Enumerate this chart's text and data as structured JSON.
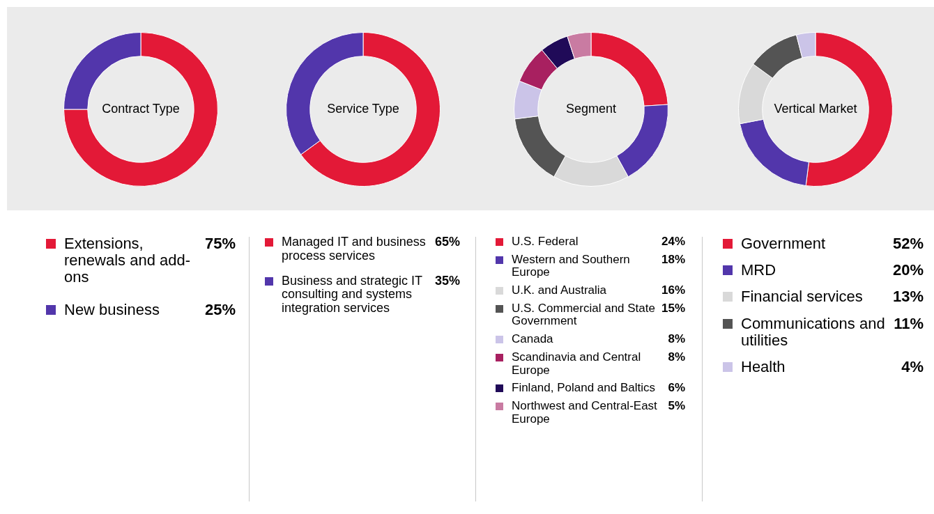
{
  "chart_data": [
    {
      "type": "donut",
      "title": "Contract Type",
      "categories": [
        "Extensions, renewals and add-ons",
        "New business"
      ],
      "values": [
        75,
        25
      ],
      "colors": [
        "#e31937",
        "#5236ab"
      ],
      "value_labels": [
        "75%",
        "25%"
      ],
      "legend": "bottom"
    },
    {
      "type": "donut",
      "title": "Service Type",
      "categories": [
        "Managed IT and business process services",
        "Business and strategic IT consulting and systems integration services"
      ],
      "values": [
        65,
        35
      ],
      "colors": [
        "#e31937",
        "#5236ab"
      ],
      "value_labels": [
        "65%",
        "35%"
      ],
      "legend": "bottom"
    },
    {
      "type": "donut",
      "title": "Segment",
      "categories": [
        "U.S. Federal",
        "Western and Southern Europe",
        "U.K. and Australia",
        "U.S. Commercial and State Government",
        "Canada",
        "Scandinavia and Central Europe",
        "Finland, Poland and Baltics",
        "Northwest and Central-East Europe"
      ],
      "values": [
        24,
        18,
        16,
        15,
        8,
        8,
        6,
        5
      ],
      "colors": [
        "#e31937",
        "#5236ab",
        "#d9d9d9",
        "#545454",
        "#cbc4e8",
        "#a82060",
        "#200a58",
        "#c97ba2"
      ],
      "value_labels": [
        "24%",
        "18%",
        "16%",
        "15%",
        "8%",
        "8%",
        "6%",
        "5%"
      ],
      "legend": "bottom"
    },
    {
      "type": "donut",
      "title": "Vertical Market",
      "categories": [
        "Government",
        "MRD",
        "Financial services",
        "Communications and utilities",
        "Health"
      ],
      "values": [
        52,
        20,
        13,
        11,
        4
      ],
      "colors": [
        "#e31937",
        "#5236ab",
        "#d9d9d9",
        "#545454",
        "#cbc4e8"
      ],
      "value_labels": [
        "52%",
        "20%",
        "13%",
        "11%",
        "4%"
      ],
      "legend": "bottom"
    }
  ]
}
